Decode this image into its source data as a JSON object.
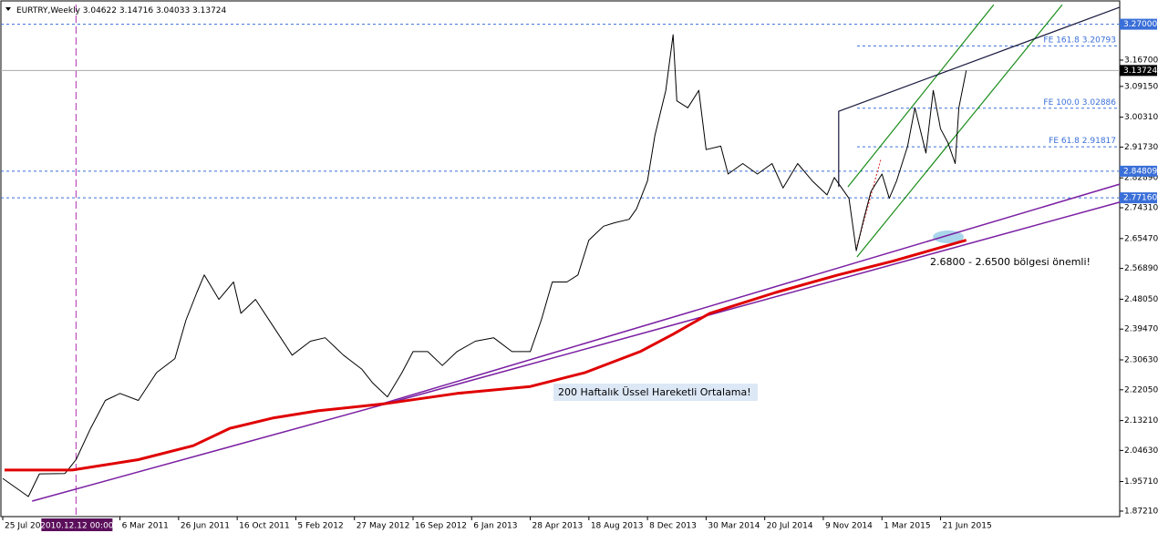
{
  "chart_data": {
    "type": "line",
    "title": "EURTRY,Weekly",
    "ohlc": [
      3.04622,
      3.14716,
      3.04033,
      3.13724
    ],
    "xlim": [
      -0.5,
      304.9
    ],
    "ylim": [
      1.8564,
      3.3265
    ],
    "xticks": [
      {
        "value": 0,
        "label": "25 Jul 2010"
      },
      {
        "value": 32,
        "label": "6 Mar 2011"
      },
      {
        "value": 48,
        "label": "26 Jun 2011"
      },
      {
        "value": 64,
        "label": "16 Oct 2011"
      },
      {
        "value": 80,
        "label": "5 Feb 2012"
      },
      {
        "value": 96,
        "label": "27 May 2012"
      },
      {
        "value": 112,
        "label": "16 Sep 2012"
      },
      {
        "value": 128,
        "label": "6 Jan 2013"
      },
      {
        "value": 144,
        "label": "28 Apr 2013"
      },
      {
        "value": 160,
        "label": "18 Aug 2013"
      },
      {
        "value": 176,
        "label": "8 Dec 2013"
      },
      {
        "value": 192,
        "label": "30 Mar 2014"
      },
      {
        "value": 208,
        "label": "20 Jul 2014"
      },
      {
        "value": 224,
        "label": "9 Nov 2014"
      },
      {
        "value": 240,
        "label": "1 Mar 2015"
      },
      {
        "value": 256,
        "label": "21 Jun 2015"
      }
    ],
    "yticks": [
      {
        "value": 1.8721,
        "label": "1.87210"
      },
      {
        "value": 1.9571,
        "label": "1.95710"
      },
      {
        "value": 2.0463,
        "label": "2.04630"
      },
      {
        "value": 2.1321,
        "label": "2.13210"
      },
      {
        "value": 2.2205,
        "label": "2.22050"
      },
      {
        "value": 2.3063,
        "label": "2.30630"
      },
      {
        "value": 2.3947,
        "label": "2.39470"
      },
      {
        "value": 2.4805,
        "label": "2.48050"
      },
      {
        "value": 2.5689,
        "label": "2.56890"
      },
      {
        "value": 2.6547,
        "label": "2.65470"
      },
      {
        "value": 2.7431,
        "label": "2.74310"
      },
      {
        "value": 2.8289,
        "label": "2.82890"
      },
      {
        "value": 2.9173,
        "label": "2.91730"
      },
      {
        "value": 3.0031,
        "label": "3.00310"
      },
      {
        "value": 3.0915,
        "label": "3.09150"
      },
      {
        "value": 3.167,
        "label": "3.16700"
      }
    ],
    "cursor": {
      "value": 20,
      "label": "2010.12.12 00:00"
    },
    "price_lines": [
      {
        "value": 3.27,
        "label": "3.27000",
        "color": "#3a6fd8"
      },
      {
        "value": 3.13724,
        "color": "#000000"
      },
      {
        "value": 2.84809,
        "color": "#3a6fd8"
      },
      {
        "value": 2.7716,
        "label": "2.77160",
        "color": "#3a6fd8"
      }
    ],
    "fib_levels": [
      {
        "label": "FE 161.8",
        "value": 3.20793
      },
      {
        "label": "FE 100.0",
        "value": 3.02886
      },
      {
        "label": "FE 61.8",
        "value": 2.91817
      }
    ],
    "series": [
      {
        "color": "#000000",
        "x": [
          0,
          7,
          10,
          17,
          20,
          24,
          28,
          32,
          37,
          42,
          47,
          50,
          53,
          55,
          59,
          63,
          65,
          69,
          74,
          79,
          84,
          88,
          93,
          98,
          101,
          105,
          109,
          112,
          116,
          120,
          124,
          129,
          134,
          139,
          144,
          147,
          150,
          154,
          157,
          160,
          164,
          167,
          171,
          173,
          176,
          178,
          181,
          183,
          184,
          187,
          190,
          192,
          196,
          198,
          202,
          206,
          210,
          213,
          217,
          221,
          225,
          227,
          231,
          233,
          235,
          237,
          240,
          242,
          244,
          247,
          249,
          252,
          254,
          256,
          258,
          260,
          261,
          263
        ],
        "values": [
          1.966,
          1.914,
          1.979,
          1.98,
          2.02,
          2.11,
          2.19,
          2.21,
          2.19,
          2.27,
          2.31,
          2.42,
          2.5,
          2.55,
          2.48,
          2.53,
          2.44,
          2.48,
          2.4,
          2.32,
          2.36,
          2.37,
          2.32,
          2.28,
          2.24,
          2.2,
          2.27,
          2.33,
          2.33,
          2.29,
          2.33,
          2.36,
          2.37,
          2.33,
          2.33,
          2.42,
          2.53,
          2.53,
          2.55,
          2.65,
          2.69,
          2.7,
          2.71,
          2.74,
          2.82,
          2.95,
          3.08,
          3.24,
          3.05,
          3.03,
          3.08,
          2.91,
          2.92,
          2.84,
          2.87,
          2.84,
          2.87,
          2.8,
          2.87,
          2.82,
          2.78,
          2.83,
          2.77,
          2.62,
          2.71,
          2.79,
          2.84,
          2.77,
          2.82,
          2.92,
          3.03,
          2.9,
          3.08,
          2.97,
          2.93,
          2.87,
          3.03,
          3.13724
        ]
      },
      {
        "color": "#e00000",
        "x": [
          0.5,
          19,
          37,
          52,
          62,
          74,
          86,
          104,
          124,
          144,
          159,
          174,
          183,
          193,
          211,
          228,
          243,
          253,
          263
        ],
        "values": [
          1.99,
          1.99,
          2.02,
          2.06,
          2.11,
          2.14,
          2.16,
          2.18,
          2.21,
          2.23,
          2.27,
          2.33,
          2.38,
          2.44,
          2.5,
          2.55,
          2.59,
          2.62,
          2.65
        ]
      }
    ],
    "trendlines": [
      {
        "color": "#7a1fa2",
        "x": [
          8,
          304.9
        ],
        "values": [
          1.901,
          2.759
        ]
      },
      {
        "color": "#7a1fa2",
        "x": [
          103.8,
          304.9
        ],
        "values": [
          2.181,
          2.811
        ]
      },
      {
        "color": "#1a8c1a",
        "x": [
          230.7,
          270.5
        ],
        "values": [
          2.803,
          3.326
        ]
      },
      {
        "color": "#1a8c1a",
        "x": [
          233.2,
          289.2
        ],
        "values": [
          2.602,
          3.326
        ]
      },
      {
        "color": "#1a1a40",
        "x": [
          228.2,
          228.2,
          304.9
        ],
        "values": [
          2.803,
          3.02,
          3.319
        ]
      },
      {
        "color": "#e04040",
        "x": [
          233.2,
          239.7
        ],
        "values": [
          2.633,
          2.882
        ]
      }
    ],
    "annotations": [
      "2.6800 - 2.6500 bölgesi önemli!",
      "200 Haftalık Üssel Hareketli Ortalama!"
    ]
  }
}
